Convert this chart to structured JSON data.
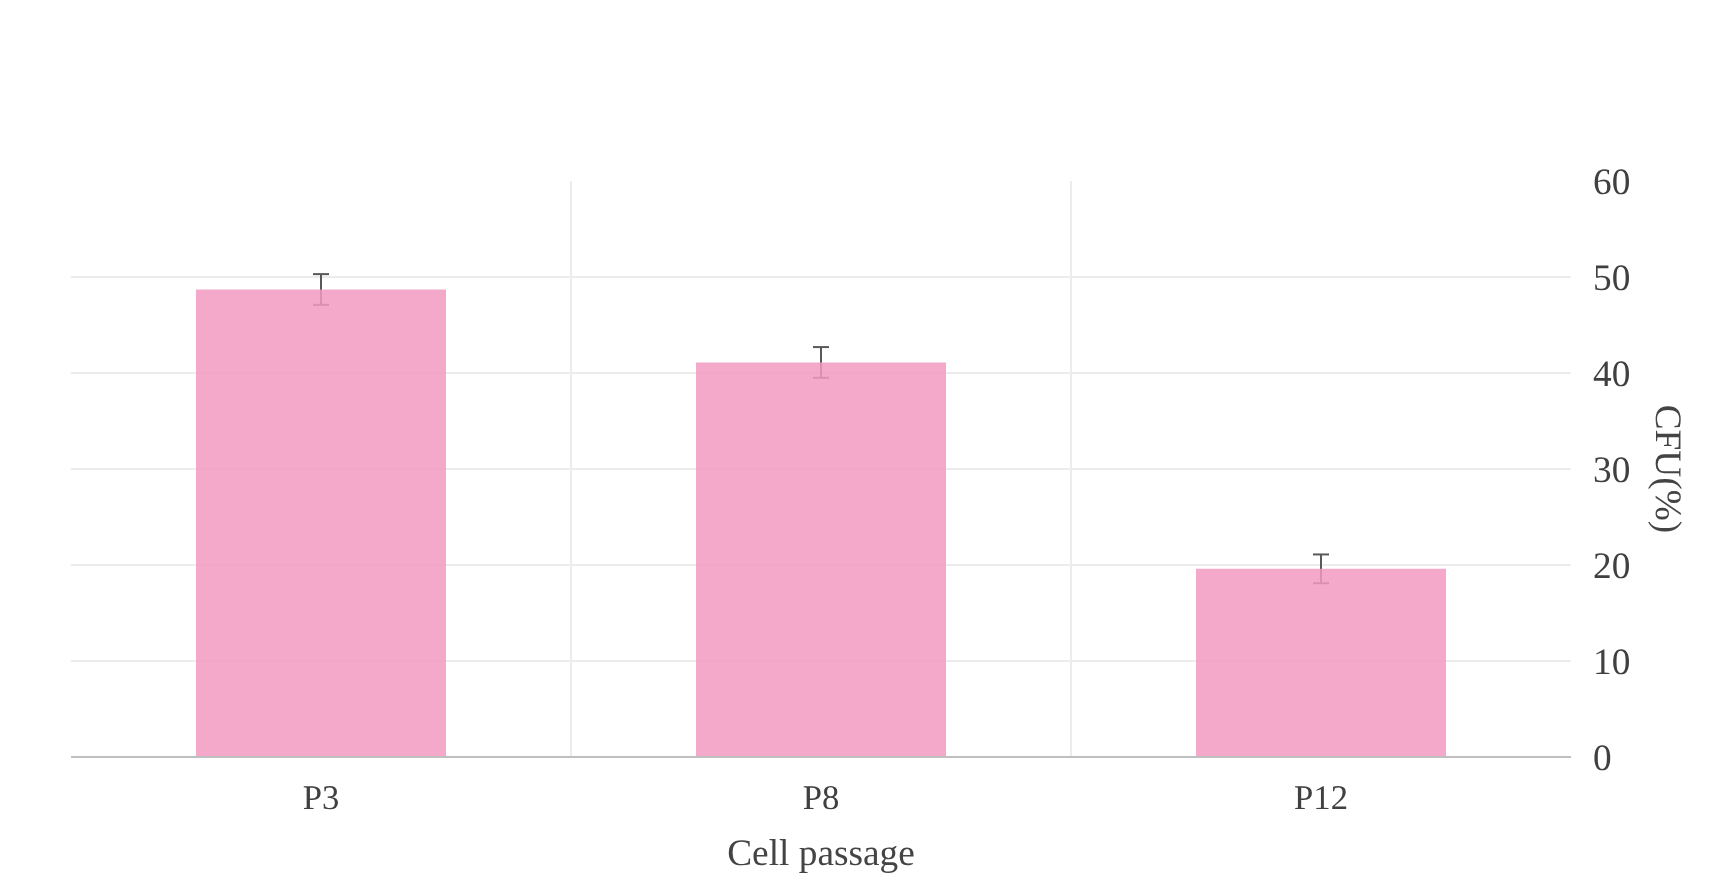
{
  "chart_data": {
    "type": "bar",
    "xlabel": "Cell passage",
    "ylabel": "CFU(%)",
    "categories": [
      "P3",
      "P8",
      "P12"
    ],
    "values": [
      48.7,
      41.1,
      19.6
    ],
    "errors": [
      1.6,
      1.6,
      1.5
    ],
    "color": "#f29ac2",
    "ylim": [
      0,
      60
    ],
    "yticks": [
      0,
      10,
      20,
      30,
      40,
      50,
      60
    ],
    "grid": true
  }
}
